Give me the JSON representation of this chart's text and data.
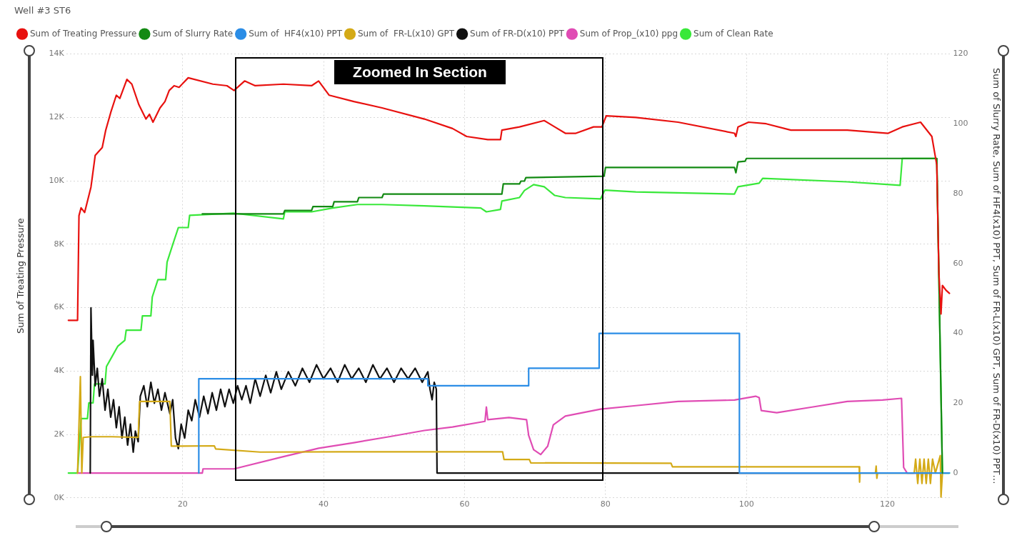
{
  "chart_data": {
    "type": "line",
    "title": "Well #3 ST6",
    "ylabel": "Sum of Treating Pressure",
    "y2label": "Sum of Slurry Rate, Sum of HF4(x10) PPT, Sum of FR-L(x10) GPT, Sum of FR-D(x10) PPT…",
    "xlim": [
      3.5,
      129
    ],
    "xticks": [
      20,
      40,
      60,
      80,
      100,
      120
    ],
    "ylim": [
      0,
      14000
    ],
    "yticks": [
      {
        "value": 0,
        "label": "0K"
      },
      {
        "value": 2000,
        "label": "2K"
      },
      {
        "value": 4000,
        "label": "4K"
      },
      {
        "value": 6000,
        "label": "6K"
      },
      {
        "value": 8000,
        "label": "8K"
      },
      {
        "value": 10000,
        "label": "10K"
      },
      {
        "value": 12000,
        "label": "12K"
      },
      {
        "value": 14000,
        "label": "14K"
      }
    ],
    "y2lim": [
      -7.1,
      120
    ],
    "y2ticks": [
      0,
      20,
      40,
      60,
      80,
      100,
      120
    ],
    "grid": true,
    "legend": "top left",
    "marker": "none",
    "line_style": "solid",
    "annotations": [
      "Zoomed In Section"
    ],
    "series": [
      {
        "name": "Sum of Treating Pressure",
        "color": "#e8110f",
        "x": [
          3.8,
          5.1,
          5.3,
          5.6,
          6.1,
          7.0,
          7.6,
          8.6,
          9.1,
          9.8,
          10.6,
          11.1,
          12.1,
          12.8,
          13.8,
          14.8,
          15.3,
          15.8,
          16.8,
          17.5,
          18.1,
          18.8,
          19.5,
          20.8,
          24.3,
          26.3,
          27.3,
          28.8,
          30.3,
          34.3,
          38.3,
          39.3,
          40.8,
          44.3,
          48.3,
          54.3,
          58.3,
          60.3,
          63.3,
          65.1,
          65.3,
          67.8,
          71.3,
          72.8,
          74.3,
          75.8,
          78.3,
          79.5,
          80.1,
          84.3,
          90.3,
          98.3,
          98.5,
          98.8,
          100.3,
          102.8,
          106.3,
          114.3,
          120.1,
          122.1,
          124.7,
          126.3,
          127.0,
          127.3,
          127.6,
          127.8,
          128.3,
          128.8
        ],
        "values": [
          5600,
          5600,
          8900,
          9150,
          9000,
          9800,
          10800,
          11050,
          11600,
          12150,
          12700,
          12600,
          13200,
          13050,
          12400,
          11950,
          12100,
          11850,
          12300,
          12500,
          12850,
          13000,
          12950,
          13250,
          13050,
          13000,
          12850,
          13150,
          13000,
          13050,
          13000,
          13150,
          12700,
          12500,
          12300,
          11950,
          11650,
          11400,
          11300,
          11300,
          11600,
          11700,
          11900,
          11700,
          11500,
          11500,
          11700,
          11700,
          12050,
          12000,
          11850,
          11500,
          11400,
          11700,
          11850,
          11800,
          11600,
          11600,
          11500,
          11700,
          11850,
          11400,
          10500,
          7100,
          5800,
          6700,
          6550,
          6450
        ]
      },
      {
        "name": "Sum of Slurry Rate",
        "color": "#138a13",
        "axis": "y2",
        "x": [
          22.8,
          34.3,
          34.5,
          38.3,
          38.5,
          41.3,
          41.5,
          44.8,
          45,
          48.3,
          48.5,
          65.3,
          65.5,
          67.8,
          68,
          68.5,
          68.7,
          79.8,
          80,
          98.3,
          98.5,
          98.8,
          99.8,
          100,
          127,
          127.8
        ],
        "values": [
          74.2,
          74.2,
          75.2,
          75.2,
          76.3,
          76.3,
          77.7,
          77.7,
          78.9,
          78.9,
          79.9,
          79.9,
          82.8,
          82.8,
          83.6,
          83.6,
          84.6,
          85,
          87.5,
          87.5,
          86,
          89.1,
          89.3,
          90.1,
          90.1,
          0
        ]
      },
      {
        "name": "Sum of  HF4(x10) PPT",
        "color": "#2b8de6",
        "type": "step",
        "axis": "y2",
        "x": [
          22.3,
          54.8,
          69.1,
          79.1,
          99,
          128.3,
          128.8
        ],
        "values": [
          0,
          27,
          25,
          30,
          40,
          0,
          0
        ]
      },
      {
        "name": "Sum of  FR-L(x10) GPT",
        "color": "#d4aa17",
        "axis": "y2",
        "x": [
          5.1,
          5.5,
          5.7,
          5.9,
          7,
          10,
          13.7,
          13.9,
          18.2,
          18.4,
          24.5,
          24.7,
          31,
          42.3,
          65.4,
          65.6,
          69.2,
          69.4,
          89.3,
          89.5,
          116,
          116.05,
          116.1,
          118.3,
          118.4,
          118.5,
          118.6,
          123.8,
          124,
          124.3,
          124.6,
          124.9,
          125.2,
          125.5,
          125.8,
          126.1,
          126.4,
          126.8,
          127.5,
          127.6,
          127.8
        ],
        "values": [
          0,
          27.6,
          0,
          10.2,
          10.4,
          10.4,
          10.2,
          20.5,
          20.5,
          7.7,
          7.8,
          6.9,
          6.0,
          6.1,
          6.1,
          3.9,
          3.9,
          2.9,
          2.8,
          1.8,
          1.8,
          -2.6,
          0,
          0,
          2,
          -1.5,
          0,
          0,
          4,
          -3,
          4,
          -3,
          4,
          -3,
          4,
          -3,
          4,
          0,
          5,
          -6.9,
          0
        ]
      },
      {
        "name": "Sum of FR-D(x10) PPT",
        "color": "#111111",
        "axis": "y2",
        "x": [
          6.9,
          7.0,
          7.2,
          7.3,
          7.6,
          7.9,
          8.2,
          8.6,
          9.0,
          9.4,
          9.8,
          10.2,
          10.6,
          11,
          11.4,
          11.8,
          12.2,
          12.6,
          13,
          13.3,
          13.7,
          14,
          14.5,
          15,
          15.5,
          16,
          16.5,
          17,
          17.5,
          18.2,
          18.6,
          19.0,
          19.4,
          19.8,
          20.3,
          20.8,
          21.3,
          21.8,
          22.4,
          23,
          23.6,
          24.2,
          24.8,
          25.4,
          26,
          26.6,
          27.2,
          27.8,
          28.4,
          29,
          29.6,
          30.3,
          31,
          31.8,
          32.5,
          33.3,
          34,
          35,
          36,
          37,
          38,
          39,
          40,
          41,
          42,
          43,
          44,
          45,
          46,
          47,
          48,
          49,
          50,
          51,
          52,
          53,
          54,
          54.8,
          55.1,
          55.4,
          55.7,
          56,
          56.1,
          115.8
        ],
        "values": [
          0,
          47.3,
          28,
          38,
          25,
          30,
          22,
          27,
          18,
          24,
          16,
          21,
          13,
          19,
          10,
          16,
          8,
          14,
          6,
          12,
          9,
          22,
          25,
          19,
          26,
          20,
          24,
          18,
          23,
          17,
          21,
          10,
          7,
          14,
          10,
          18,
          15,
          21,
          16,
          22,
          17,
          23,
          18,
          24,
          19,
          24,
          20,
          25,
          21,
          25,
          20,
          27,
          22,
          28,
          23,
          29,
          24,
          29,
          25,
          30,
          26,
          31,
          27,
          30,
          26,
          31,
          27,
          30,
          26,
          31,
          27,
          30,
          26,
          30,
          27,
          30,
          26,
          29,
          24,
          21,
          26,
          24,
          0,
          0
        ]
      },
      {
        "name": "Sum of Prop_(x10) ppg",
        "color": "#e04cb4",
        "axis": "y2",
        "x": [
          5.1,
          22.8,
          22.9,
          27.3,
          34.3,
          39.3,
          44.3,
          49.3,
          54.3,
          58.3,
          62.9,
          63.1,
          63.3,
          66.3,
          68.8,
          69.1,
          69.8,
          70.8,
          71.8,
          72.6,
          74.3,
          79.3,
          84.3,
          90.3,
          98.3,
          101.3,
          101.8,
          102.1,
          104.3,
          109.3,
          114.3,
          119.3,
          122.0,
          122.3,
          122.8,
          126.3
        ],
        "values": [
          0,
          0,
          1.2,
          1.2,
          4.7,
          7.1,
          8.7,
          10.4,
          12.2,
          13.2,
          14.8,
          18.9,
          15.3,
          15.9,
          15.3,
          10.8,
          6.7,
          5.3,
          7.7,
          13.8,
          16.3,
          18.3,
          19.3,
          20.5,
          20.9,
          22.0,
          21.6,
          17.9,
          17.3,
          18.9,
          20.5,
          20.9,
          21.4,
          1.6,
          0,
          0
        ]
      },
      {
        "name": "Sum of Clean Rate",
        "color": "#39e83a",
        "axis": "y2",
        "x": [
          3.8,
          5.1,
          5.6,
          6.5,
          6.7,
          7.3,
          7.5,
          9.0,
          9.2,
          10.0,
          10.8,
          11.8,
          12.0,
          14.1,
          14.3,
          15.5,
          15.7,
          16.5,
          17.6,
          17.8,
          18.6,
          19.4,
          20.8,
          21.0,
          27.3,
          34.3,
          34.5,
          38.3,
          41.3,
          44.8,
          48.3,
          54.3,
          62.3,
          63.1,
          65.1,
          65.3,
          67.8,
          68.5,
          69.8,
          71.3,
          72.8,
          74.3,
          79.3,
          79.9,
          84.3,
          98.3,
          98.8,
          101.8,
          102.3,
          114.3,
          121.8,
          122.1,
          127,
          127.8,
          128.8
        ],
        "values": [
          0,
          0,
          15.6,
          15.6,
          20.1,
          20.1,
          25.5,
          25.5,
          30.5,
          33.4,
          36.3,
          38.0,
          40.9,
          40.9,
          45.0,
          45.0,
          50.4,
          55.4,
          55.4,
          60.4,
          65.4,
          70.3,
          70.3,
          73.8,
          74.4,
          72.8,
          74.8,
          74.8,
          75.9,
          76.9,
          76.9,
          76.5,
          75.9,
          74.8,
          75.5,
          77.9,
          78.9,
          80.9,
          82.6,
          82,
          79.5,
          78.9,
          78.5,
          81,
          80.5,
          79.9,
          82,
          83,
          84.4,
          83.4,
          82.4,
          90.1,
          90.1,
          0,
          0
        ]
      }
    ]
  }
}
